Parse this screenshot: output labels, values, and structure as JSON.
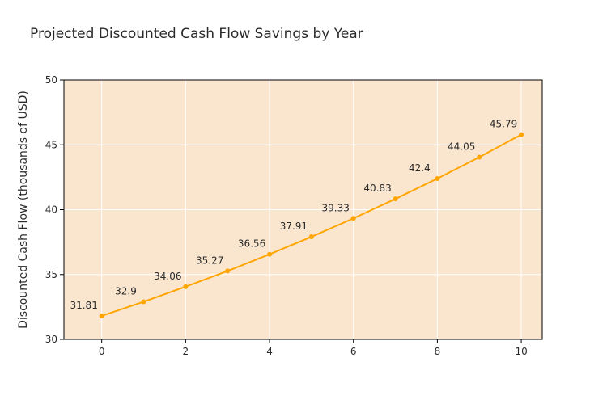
{
  "chart_data": {
    "type": "line",
    "title": "Projected Discounted Cash Flow Savings by Year",
    "xlabel": "",
    "ylabel": "Discounted Cash Flow (thousands of USD)",
    "x": [
      0,
      1,
      2,
      3,
      4,
      5,
      6,
      7,
      8,
      9,
      10
    ],
    "values": [
      31.81,
      32.9,
      34.06,
      35.27,
      36.56,
      37.91,
      39.33,
      40.83,
      42.4,
      44.05,
      45.79
    ],
    "data_labels": [
      "31.81",
      "32.9",
      "34.06",
      "35.27",
      "36.56",
      "37.91",
      "39.33",
      "40.83",
      "42.4",
      "44.05",
      "45.79"
    ],
    "xlim": [
      -0.9,
      10.5
    ],
    "ylim": [
      30,
      50
    ],
    "x_ticks": [
      0,
      2,
      4,
      6,
      8,
      10
    ],
    "x_tick_labels": [
      "0",
      "2",
      "4",
      "6",
      "8",
      "10"
    ],
    "y_ticks": [
      30,
      35,
      40,
      45,
      50
    ],
    "y_tick_labels": [
      "30",
      "35",
      "40",
      "45",
      "50"
    ],
    "grid": true,
    "colors": {
      "line": "#ffa500",
      "plot_background": "#fae6cf",
      "grid": "#ffffff",
      "axis": "#000000"
    }
  }
}
